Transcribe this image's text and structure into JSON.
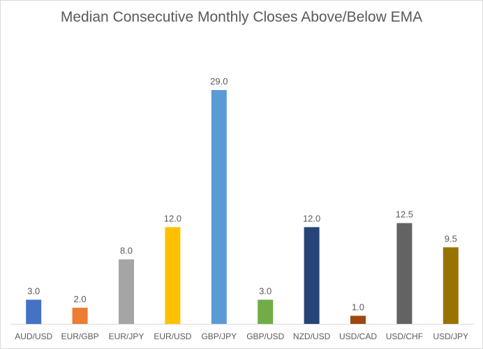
{
  "chart_data": {
    "type": "bar",
    "title": "Median Consecutive Monthly Closes Above/Below EMA",
    "xlabel": "",
    "ylabel": "",
    "categories": [
      "AUD/USD",
      "EUR/GBP",
      "EUR/JPY",
      "EUR/USD",
      "GBP/JPY",
      "GBP/USD",
      "NZD/USD",
      "USD/CAD",
      "USD/CHF",
      "USD/JPY"
    ],
    "values": [
      3.0,
      2.0,
      8.0,
      12.0,
      29.0,
      3.0,
      12.0,
      1.0,
      12.5,
      9.5
    ],
    "data_labels": [
      "3.0",
      "2.0",
      "8.0",
      "12.0",
      "29.0",
      "3.0",
      "12.0",
      "1.0",
      "12.5",
      "9.5"
    ],
    "bar_colors": [
      "#4472C4",
      "#ED7D31",
      "#A5A5A5",
      "#FFC000",
      "#5B9BD5",
      "#70AD47",
      "#264478",
      "#9E480E",
      "#636363",
      "#997300"
    ],
    "ylim": [
      0,
      30
    ],
    "grid": false,
    "legend": "none",
    "axis_color": "#d9d9d9",
    "label_color": "#595959"
  }
}
